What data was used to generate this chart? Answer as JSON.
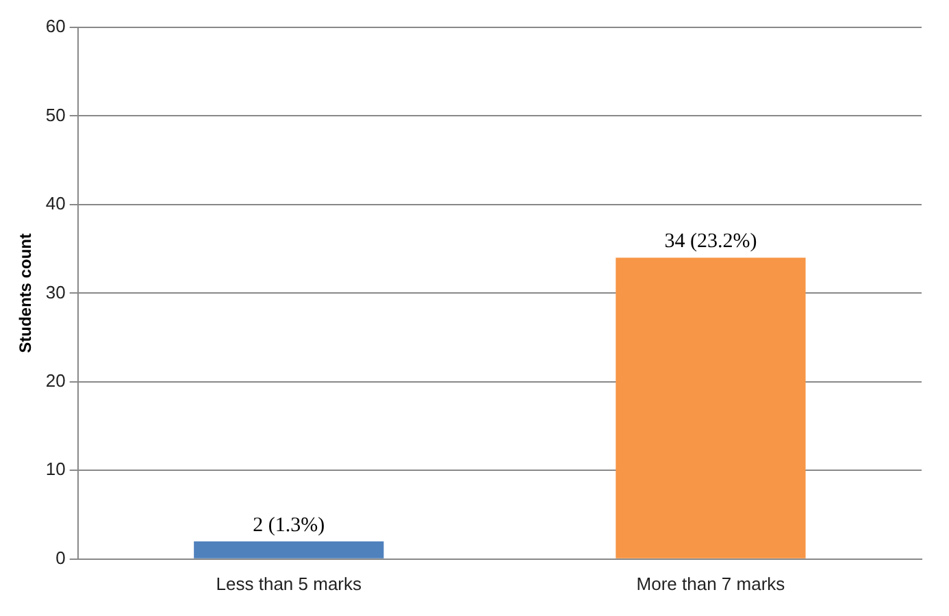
{
  "chart_data": {
    "type": "bar",
    "ylabel": "Students count",
    "categories": [
      "Less than 5 marks",
      "More than 7 marks"
    ],
    "values": [
      2,
      34
    ],
    "colors": [
      "#4f81bd",
      "#f79646"
    ],
    "value_labels": [
      "2 (1.3%)",
      "34 (23.2%)"
    ],
    "ylim": [
      0,
      60
    ],
    "yticks": [
      0,
      10,
      20,
      30,
      40,
      50,
      60
    ],
    "grid": "y",
    "legend": false
  }
}
